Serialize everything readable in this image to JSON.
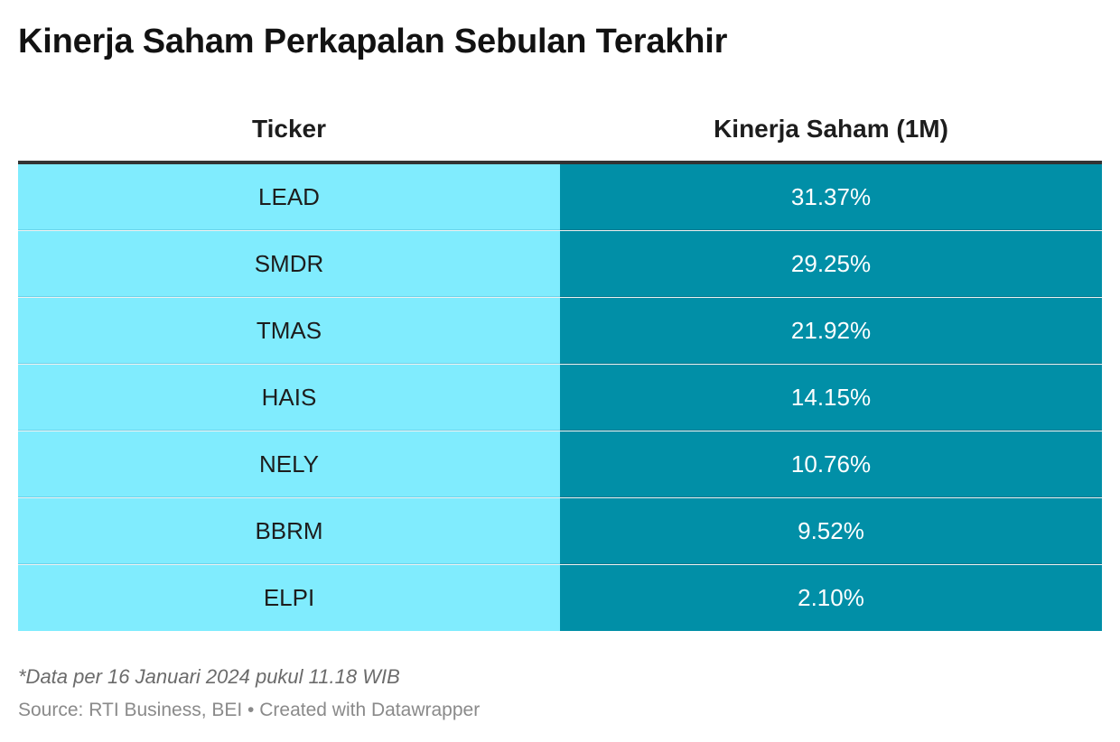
{
  "title": "Kinerja Saham Perkapalan Sebulan Terakhir",
  "chart_data": {
    "type": "table",
    "title": "Kinerja Saham Perkapalan Sebulan Terakhir",
    "columns": [
      "Ticker",
      "Kinerja Saham (1M)"
    ],
    "rows": [
      [
        "LEAD",
        "31.37%"
      ],
      [
        "SMDR",
        "29.25%"
      ],
      [
        "TMAS",
        "21.92%"
      ],
      [
        "HAIS",
        "14.15%"
      ],
      [
        "NELY",
        "10.76%"
      ],
      [
        "BBRM",
        "9.52%"
      ],
      [
        "ELPI",
        "2.10%"
      ]
    ],
    "values": [
      31.37,
      29.25,
      21.92,
      14.15,
      10.76,
      9.52,
      2.1
    ]
  },
  "colors": {
    "ticker_cell": "#80ecfe",
    "performance_cell": "#018fa7",
    "header_rule": "#333333"
  },
  "footer": {
    "note": "*Data per 16 Januari 2024 pukul 11.18 WIB",
    "source": "Source: RTI Business, BEI • Created with Datawrapper"
  }
}
